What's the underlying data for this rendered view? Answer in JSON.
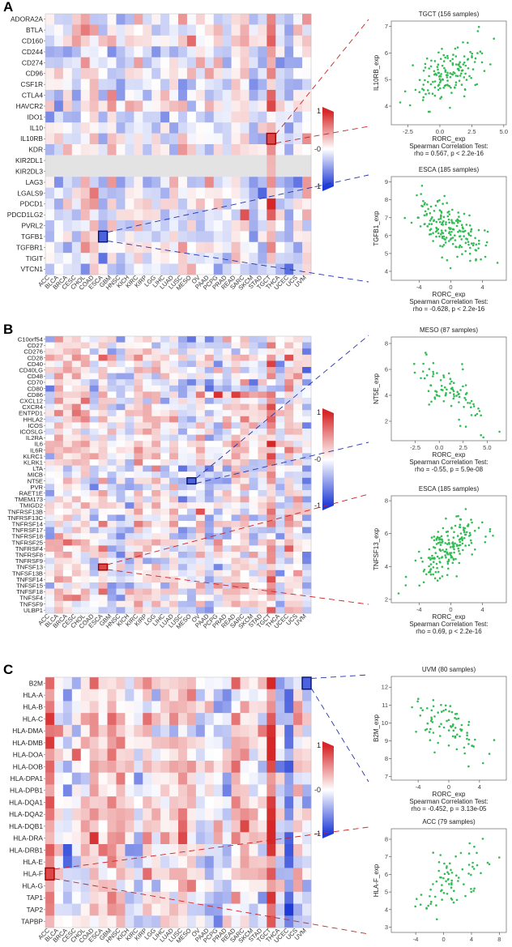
{
  "colors": {
    "pos": "#d62728",
    "neg": "#1f3bd6",
    "mid": "#ffffff",
    "point": "#33bb55",
    "dash_pos": "#cc2222",
    "dash_neg": "#2233aa"
  },
  "panels": [
    {
      "letter": "A",
      "heatmap": {
        "genes": [
          "ADORA2A",
          "BTLA",
          "CD160",
          "CD244",
          "CD274",
          "CD96",
          "CSF1R",
          "CTLA4",
          "HAVCR2",
          "IDO1",
          "IL10",
          "IL10RB",
          "KDR",
          "KIR2DL1",
          "KIR2DL3",
          "LAG3",
          "LGALS9",
          "PDCD1",
          "PDCD1LG2",
          "PVRL2",
          "TGFB1",
          "TGFBR1",
          "TIGIT",
          "VTCN1"
        ],
        "legend": {
          "max": "1",
          "mid": "-0",
          "min": "-1"
        },
        "highlight": [
          {
            "gene": "IL10RB",
            "cancer": "TGCT",
            "sign": "pos"
          },
          {
            "gene": "TGFB1",
            "cancer": "ESCA",
            "sign": "neg"
          }
        ]
      },
      "scatters": [
        {
          "title": "TGCT (156 samples)",
          "xlabel": "RORC_exp",
          "ylabel": "IL10RB_exp",
          "xticks": [
            "-2.5",
            "0.0",
            "2.5",
            "5.0"
          ],
          "yticks": [
            "4",
            "5",
            "6",
            "7"
          ],
          "stat_title": "Spearman Correlation Test:",
          "stat": "rho = 0.567, p < 2.2e-16"
        },
        {
          "title": "ESCA (185 samples)",
          "xlabel": "RORC_exp",
          "ylabel": "TGFB1_exp",
          "xticks": [
            "-4",
            "0",
            "4"
          ],
          "yticks": [
            "4",
            "5",
            "6",
            "7",
            "8",
            "9"
          ],
          "stat_title": "Spearman Correlation Test:",
          "stat": "rho = -0.628, p < 2.2e-16"
        }
      ]
    },
    {
      "letter": "B",
      "heatmap": {
        "genes": [
          "C10orf54",
          "CD27",
          "CD276",
          "CD28",
          "CD40",
          "CD40LG",
          "CD48",
          "CD70",
          "CD80",
          "CD86",
          "CXCL12",
          "CXCR4",
          "ENTPD1",
          "HHLA2",
          "ICOS",
          "ICOSLG",
          "IL2RA",
          "IL6",
          "IL6R",
          "KLRC1",
          "KLRK1",
          "LTA",
          "MICB",
          "NT5E",
          "PVR",
          "RAET1E",
          "TMEM173",
          "TMIGD2",
          "TNFRSF13B",
          "TNFRSF13C",
          "TNFRSF14",
          "TNFRSF17",
          "TNFRSF18",
          "TNFRSF25",
          "TNFRSF4",
          "TNFRSF8",
          "TNFRSF9",
          "TNFSF13",
          "TNFSF13B",
          "TNFSF14",
          "TNFSF15",
          "TNFSF18",
          "TNFSF4",
          "TNFSF9",
          "ULBP1"
        ],
        "legend": {
          "max": "1",
          "mid": "-0",
          "min": "-1"
        },
        "highlight": [
          {
            "gene": "NT5E",
            "cancer": "MESO",
            "sign": "neg"
          },
          {
            "gene": "TNFSF13",
            "cancer": "ESCA",
            "sign": "pos"
          }
        ]
      },
      "scatters": [
        {
          "title": "MESO (87 samples)",
          "xlabel": "RORC_exp",
          "ylabel": "NT5E_exp",
          "xticks": [
            "-2.5",
            "0.0",
            "2.5",
            "5.0"
          ],
          "yticks": [
            "2",
            "4",
            "6",
            "8"
          ],
          "stat_title": "Spearman Correlation Test:",
          "stat": "rho = -0.55, p = 5.9e-08"
        },
        {
          "title": "ESCA (185 samples)",
          "xlabel": "RORC_exp",
          "ylabel": "TNFSF13_exp",
          "xticks": [
            "-4",
            "0",
            "4"
          ],
          "yticks": [
            "2",
            "4",
            "6",
            "8"
          ],
          "stat_title": "Spearman Correlation Test:",
          "stat": "rho = 0.69, p < 2.2e-16"
        }
      ]
    },
    {
      "letter": "C",
      "heatmap": {
        "genes": [
          "B2M",
          "HLA-A",
          "HLA-B",
          "HLA-C",
          "HLA-DMA",
          "HLA-DMB",
          "HLA-DOA",
          "HLA-DOB",
          "HLA-DPA1",
          "HLA-DPB1",
          "HLA-DQA1",
          "HLA-DQA2",
          "HLA-DQB1",
          "HLA-DRA",
          "HLA-DRB1",
          "HLA-E",
          "HLA-F",
          "HLA-G",
          "TAP1",
          "TAP2",
          "TAPBP"
        ],
        "legend": {
          "max": "1",
          "mid": "-0",
          "min": "-1"
        },
        "highlight": [
          {
            "gene": "B2M",
            "cancer": "UVM",
            "sign": "neg"
          },
          {
            "gene": "HLA-F",
            "cancer": "ACC",
            "sign": "pos"
          }
        ]
      },
      "scatters": [
        {
          "title": "UVM (80 samples)",
          "xlabel": "RORC_exp",
          "ylabel": "B2M_exp",
          "xticks": [
            "-4",
            "0",
            "4"
          ],
          "yticks": [
            "7",
            "8",
            "9",
            "10",
            "11",
            "12"
          ],
          "stat_title": "Spearman Correlation Test:",
          "stat": "rho = -0.452, p = 3.13e-05"
        },
        {
          "title": "ACC (79 samples)",
          "xlabel": "RORC_exp",
          "ylabel": "HLA-F_exp",
          "xticks": [
            "-4",
            "0",
            "4",
            "8"
          ],
          "yticks": [
            "3",
            "4",
            "5",
            "6",
            "7",
            "8"
          ],
          "stat_title": "Spearman Correlation Test:",
          "stat": "rho = 0.62, p = 9.87e-10"
        }
      ]
    }
  ],
  "chart_data": [
    {
      "type": "heatmap",
      "title": "A",
      "rows": "panels.0.heatmap.genes",
      "columns": [
        "ACC",
        "BLCA",
        "BRCA",
        "CESC",
        "CHOL",
        "COAD",
        "ESCA",
        "GBM",
        "HNSC",
        "KICH",
        "KIRC",
        "KIRP",
        "LGG",
        "LIHC",
        "LUAD",
        "LUSC",
        "MESO",
        "OV",
        "PAAD",
        "PCPG",
        "PRAD",
        "READ",
        "SARC",
        "SKCM",
        "STAD",
        "TGCT",
        "THCA",
        "UCEC",
        "UCS",
        "UVM"
      ],
      "value_range": [
        -1,
        1
      ]
    },
    {
      "type": "scatter",
      "title": "TGCT (156 samples)",
      "xlabel": "RORC_exp",
      "ylabel": "IL10RB_exp",
      "xlim": [
        -3.8,
        5.2
      ],
      "ylim": [
        3.3,
        7.2
      ],
      "n": 156,
      "rho": 0.567
    },
    {
      "type": "scatter",
      "title": "ESCA (185 samples)",
      "xlabel": "RORC_exp",
      "ylabel": "TGFB1_exp",
      "xlim": [
        -7.5,
        7.0
      ],
      "ylim": [
        3.5,
        9.3
      ],
      "n": 185,
      "rho": -0.628
    },
    {
      "type": "heatmap",
      "title": "B",
      "rows": "panels.1.heatmap.genes",
      "columns": [
        "ACC",
        "BLCA",
        "BRCA",
        "CESC",
        "CHOL",
        "COAD",
        "ESCA",
        "GBM",
        "HNSC",
        "KICH",
        "KIRC",
        "KIRP",
        "LGG",
        "LIHC",
        "LUAD",
        "LUSC",
        "MESO",
        "OV",
        "PAAD",
        "PCPG",
        "PRAD",
        "READ",
        "SARC",
        "SKCM",
        "STAD",
        "TGCT",
        "THCA",
        "UCEC",
        "UCS",
        "UVM"
      ],
      "value_range": [
        -1,
        1
      ]
    },
    {
      "type": "scatter",
      "title": "MESO (87 samples)",
      "xlabel": "RORC_exp",
      "ylabel": "NT5E_exp",
      "xlim": [
        -5.0,
        7.0
      ],
      "ylim": [
        0.5,
        8.5
      ],
      "n": 87,
      "rho": -0.55
    },
    {
      "type": "scatter",
      "title": "ESCA (185 samples)",
      "xlabel": "RORC_exp",
      "ylabel": "TNFSF13_exp",
      "xlim": [
        -7.5,
        7.0
      ],
      "ylim": [
        1.8,
        8.3
      ],
      "n": 185,
      "rho": 0.69
    },
    {
      "type": "heatmap",
      "title": "C",
      "rows": "panels.2.heatmap.genes",
      "columns": [
        "ACC",
        "BLCA",
        "BRCA",
        "CESC",
        "CHOL",
        "COAD",
        "ESCA",
        "GBM",
        "HNSC",
        "KICH",
        "KIRC",
        "KIRP",
        "LGG",
        "LIHC",
        "LUAD",
        "LUSC",
        "MESO",
        "OV",
        "PAAD",
        "PCPG",
        "PRAD",
        "READ",
        "SARC",
        "SKCM",
        "STAD",
        "TGCT",
        "THCA",
        "UCEC",
        "UCS",
        "UVM"
      ],
      "value_range": [
        -1,
        1
      ]
    },
    {
      "type": "scatter",
      "title": "UVM (80 samples)",
      "xlabel": "RORC_exp",
      "ylabel": "B2M_exp",
      "xlim": [
        -7.5,
        7.5
      ],
      "ylim": [
        6.8,
        12.6
      ],
      "n": 80,
      "rho": -0.452
    },
    {
      "type": "scatter",
      "title": "ACC (79 samples)",
      "xlabel": "RORC_exp",
      "ylabel": "HLA-F_exp",
      "xlim": [
        -7.5,
        9.0
      ],
      "ylim": [
        2.7,
        8.6
      ],
      "n": 79,
      "rho": 0.62
    }
  ]
}
